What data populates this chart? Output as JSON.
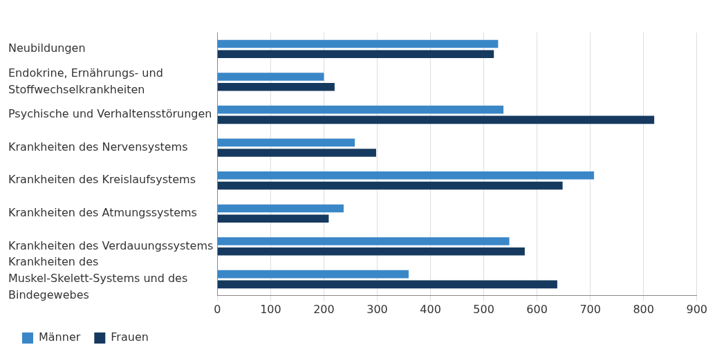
{
  "chart_data": {
    "type": "bar",
    "orientation": "horizontal",
    "categories": [
      "Neubildungen",
      "Endokrine, Ernährungs- und Stoffwechselkrankheiten",
      "Psychische und Verhaltensstörungen",
      "Krankheiten des Nervensystems",
      "Krankheiten des Kreislaufsystems",
      "Krankheiten des Atmungssystems",
      "Krankheiten des Verdauungssystems",
      "Krankheiten des Muskel-Skelett-Systems und des Bindegewebes"
    ],
    "series": [
      {
        "name": "Männer",
        "color": "#3a87c8",
        "values": [
          527,
          200,
          537,
          258,
          707,
          237,
          548,
          359
        ]
      },
      {
        "name": "Frauen",
        "color": "#163a5f",
        "values": [
          519,
          220,
          820,
          298,
          648,
          209,
          577,
          638
        ]
      }
    ],
    "xlim": [
      0,
      900
    ],
    "xticks": [
      0,
      100,
      200,
      300,
      400,
      500,
      600,
      700,
      800,
      900
    ],
    "grid": "x",
    "legend": "bottom left"
  }
}
